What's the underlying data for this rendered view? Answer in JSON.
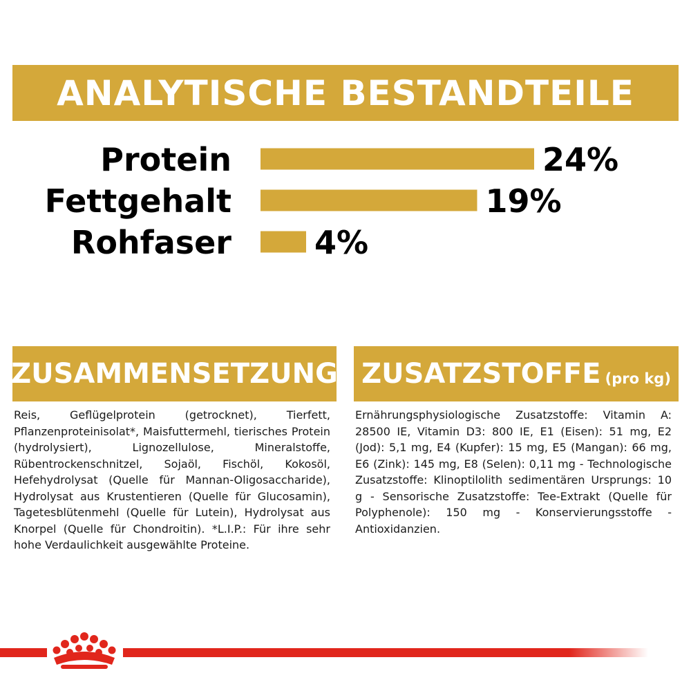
{
  "header": {
    "title": "ANALYTISCHE BESTANDTEILE"
  },
  "chart_data": {
    "type": "bar",
    "orientation": "horizontal",
    "categories": [
      "Protein",
      "Fettgehalt",
      "Rohfaser"
    ],
    "values": [
      24,
      19,
      4
    ],
    "value_labels": [
      "24%",
      "19%",
      "4%"
    ],
    "unit": "%",
    "bar_color": "#d4a83a",
    "grid": false
  },
  "composition": {
    "title": "ZUSAMMENSETZUNG",
    "text": "Reis, Geflügelprotein (getrocknet), Tierfett, Pflanzenproteinisolat*, Maisfuttermehl, tierisches Protein (hydrolysiert), Lignozellulose, Mineralstoffe, Rübentrockenschnitzel, Sojaöl, Fischöl, Kokosöl, Hefehydrolysat (Quelle für Mannan-Oligosaccharide), Hydrolysat aus Krustentieren (Quelle für Glucosamin), Tagetesblütenmehl (Quelle für Lutein), Hydrolysat aus Knorpel (Quelle für Chondroitin). *L.I.P.: Für ihre sehr hohe Verdaulichkeit ausgewählte Proteine."
  },
  "additives": {
    "title": "ZUSATZSTOFFE",
    "title_suffix": "(pro kg)",
    "text": "Ernährungsphysiologische Zusatzstoffe: Vitamin A: 28500 IE, Vitamin D3: 800 IE, E1 (Eisen): 51 mg, E2 (Jod): 5,1 mg, E4 (Kupfer): 15 mg, E5 (Mangan): 66 mg, E6 (Zink): 145 mg, E8 (Selen): 0,11 mg - Technologische Zusatzstoffe: Klinoptilolith sedimentären Ursprungs: 10 g - Sensorische Zusatzstoffe: Tee-Extrakt (Quelle für Polyphenole): 150 mg - Konservierungsstoffe - Antioxidanzien."
  },
  "brand": {
    "icon": "crown-icon",
    "accent_color": "#e1261c"
  }
}
